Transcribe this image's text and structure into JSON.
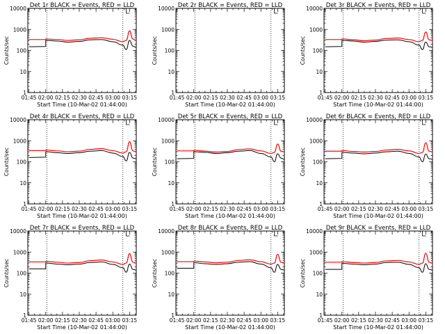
{
  "x_tick_labels": [
    "01:45",
    "02:00",
    "02:15",
    "02:30",
    "02:45",
    "03:00",
    "03:15"
  ],
  "y_tick_labels": [
    "1",
    "10",
    "100",
    "1000",
    "10000"
  ],
  "ylabel": "Counts/sec",
  "xlabel": "Start Time (10-Mar-02 01:44:00)",
  "colors": {
    "events": "#000000",
    "lld": "#ff0000"
  },
  "chart_data": [
    {
      "type": "line",
      "title": "Det 1r BLACK = Events, RED = LLD",
      "has_data": true,
      "xlim": [
        -1,
        96
      ],
      "ylim": [
        1,
        10000
      ],
      "yscale": "log",
      "vlines": [
        16,
        84
      ],
      "marker_x": 87,
      "x": [
        0,
        15,
        16,
        25,
        35,
        45,
        55,
        65,
        75,
        84,
        87,
        90,
        93,
        96
      ],
      "series": [
        {
          "name": "Events",
          "values": [
            150,
            155,
            300,
            280,
            250,
            270,
            320,
            330,
            260,
            180,
            110,
            300,
            160,
            140
          ]
        },
        {
          "name": "LLD",
          "values": [
            330,
            330,
            350,
            330,
            300,
            320,
            380,
            400,
            340,
            260,
            300,
            850,
            350,
            300
          ]
        }
      ]
    },
    {
      "type": "line",
      "title": "Det 2r BLACK = Events, RED = LLD",
      "has_data": false,
      "xlim": [
        -1,
        96
      ],
      "ylim": [
        1,
        10000
      ],
      "yscale": "log",
      "vlines": [
        16,
        84
      ],
      "marker_x": 87,
      "x": [],
      "series": []
    },
    {
      "type": "line",
      "title": "Det 3r BLACK = Events, RED = LLD",
      "has_data": true,
      "xlim": [
        -1,
        96
      ],
      "ylim": [
        1,
        10000
      ],
      "yscale": "log",
      "vlines": [
        16,
        84
      ],
      "marker_x": 87,
      "x": [
        0,
        15,
        16,
        25,
        35,
        45,
        55,
        65,
        75,
        84,
        87,
        90,
        93,
        96
      ],
      "series": [
        {
          "name": "Events",
          "values": [
            150,
            155,
            300,
            280,
            250,
            270,
            310,
            320,
            260,
            180,
            110,
            250,
            150,
            140
          ]
        },
        {
          "name": "LLD",
          "values": [
            330,
            330,
            350,
            320,
            290,
            310,
            370,
            390,
            330,
            260,
            300,
            750,
            320,
            300
          ]
        }
      ]
    },
    {
      "type": "line",
      "title": "Det 4r BLACK = Events, RED = LLD",
      "has_data": true,
      "xlim": [
        -1,
        96
      ],
      "ylim": [
        1,
        10000
      ],
      "yscale": "log",
      "vlines": [
        16,
        84
      ],
      "marker_x": 87,
      "x": [
        0,
        15,
        16,
        25,
        35,
        45,
        55,
        65,
        75,
        84,
        87,
        90,
        93,
        96
      ],
      "series": [
        {
          "name": "Events",
          "values": [
            160,
            165,
            300,
            270,
            250,
            270,
            320,
            340,
            260,
            180,
            110,
            280,
            150,
            140
          ]
        },
        {
          "name": "LLD",
          "values": [
            340,
            340,
            360,
            330,
            300,
            320,
            390,
            420,
            340,
            260,
            300,
            900,
            330,
            300
          ]
        }
      ]
    },
    {
      "type": "line",
      "title": "Det 5r BLACK = Events, RED = LLD",
      "has_data": true,
      "xlim": [
        -1,
        96
      ],
      "ylim": [
        1,
        10000
      ],
      "yscale": "log",
      "vlines": [
        16,
        84
      ],
      "marker_x": 87,
      "x": [
        0,
        15,
        16,
        25,
        35,
        45,
        55,
        65,
        75,
        84,
        87,
        90,
        93,
        96
      ],
      "series": [
        {
          "name": "Events",
          "values": [
            140,
            145,
            300,
            280,
            250,
            270,
            320,
            340,
            250,
            170,
            100,
            240,
            150,
            130
          ]
        },
        {
          "name": "LLD",
          "values": [
            330,
            330,
            350,
            320,
            290,
            310,
            380,
            410,
            330,
            250,
            280,
            700,
            320,
            300
          ]
        }
      ]
    },
    {
      "type": "line",
      "title": "Det 6r BLACK = Events, RED = LLD",
      "has_data": true,
      "xlim": [
        -1,
        96
      ],
      "ylim": [
        1,
        10000
      ],
      "yscale": "log",
      "vlines": [
        16,
        84
      ],
      "marker_x": 87,
      "x": [
        0,
        15,
        16,
        25,
        35,
        45,
        55,
        65,
        75,
        84,
        87,
        90,
        93,
        96
      ],
      "series": [
        {
          "name": "Events",
          "values": [
            140,
            145,
            280,
            260,
            240,
            260,
            300,
            320,
            250,
            170,
            100,
            230,
            140,
            130
          ]
        },
        {
          "name": "LLD",
          "values": [
            320,
            320,
            340,
            310,
            290,
            310,
            360,
            390,
            330,
            250,
            280,
            800,
            320,
            290
          ]
        }
      ]
    },
    {
      "type": "line",
      "title": "Det 7r BLACK = Events, RED = LLD",
      "has_data": true,
      "xlim": [
        -1,
        96
      ],
      "ylim": [
        1,
        10000
      ],
      "yscale": "log",
      "vlines": [
        16,
        84
      ],
      "marker_x": 87,
      "x": [
        0,
        15,
        16,
        25,
        35,
        45,
        55,
        65,
        75,
        84,
        87,
        90,
        93,
        96
      ],
      "series": [
        {
          "name": "Events",
          "values": [
            160,
            160,
            300,
            270,
            250,
            270,
            320,
            340,
            260,
            180,
            110,
            270,
            150,
            140
          ]
        },
        {
          "name": "LLD",
          "values": [
            340,
            340,
            360,
            330,
            300,
            320,
            390,
            420,
            340,
            260,
            300,
            850,
            330,
            300
          ]
        }
      ]
    },
    {
      "type": "line",
      "title": "Det 8r BLACK = Events, RED = LLD",
      "has_data": true,
      "xlim": [
        -1,
        96
      ],
      "ylim": [
        1,
        10000
      ],
      "yscale": "log",
      "vlines": [
        16,
        84
      ],
      "marker_x": 87,
      "x": [
        0,
        15,
        16,
        25,
        35,
        45,
        55,
        65,
        75,
        84,
        87,
        90,
        93,
        96
      ],
      "series": [
        {
          "name": "Events",
          "values": [
            170,
            170,
            310,
            280,
            260,
            280,
            330,
            350,
            270,
            180,
            110,
            260,
            150,
            140
          ]
        },
        {
          "name": "LLD",
          "values": [
            350,
            350,
            370,
            340,
            310,
            330,
            400,
            430,
            350,
            270,
            300,
            780,
            330,
            300
          ]
        }
      ]
    },
    {
      "type": "line",
      "title": "Det 9r BLACK = Events, RED = LLD",
      "has_data": true,
      "xlim": [
        -1,
        96
      ],
      "ylim": [
        1,
        10000
      ],
      "yscale": "log",
      "vlines": [
        16,
        84
      ],
      "marker_x": 87,
      "x": [
        0,
        15,
        16,
        25,
        35,
        45,
        55,
        65,
        75,
        84,
        87,
        90,
        93,
        96
      ],
      "series": [
        {
          "name": "Events",
          "values": [
            150,
            150,
            290,
            270,
            250,
            270,
            320,
            330,
            260,
            180,
            110,
            280,
            150,
            140
          ]
        },
        {
          "name": "LLD",
          "values": [
            330,
            330,
            350,
            320,
            300,
            320,
            380,
            400,
            340,
            260,
            300,
            880,
            330,
            300
          ]
        }
      ]
    }
  ]
}
